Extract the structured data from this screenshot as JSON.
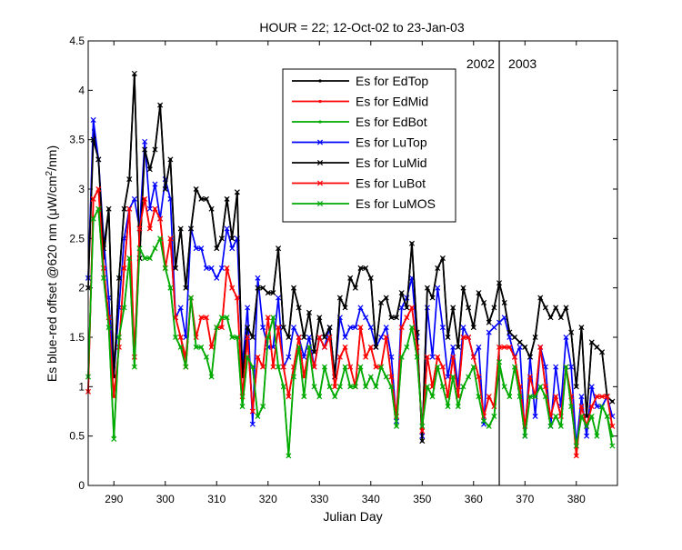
{
  "chart_data": {
    "type": "line",
    "title": "HOUR = 22; 12-Oct-02 to 23-Jan-03",
    "xlabel": "Julian Day",
    "ylabel_parts": [
      "Es blue-red offset @620 nm (",
      "μ",
      "W/cm",
      "2",
      "/nm)"
    ],
    "xlim": [
      285,
      388
    ],
    "ylim": [
      0,
      4.5
    ],
    "xticks": [
      290,
      300,
      310,
      320,
      330,
      340,
      350,
      360,
      370,
      380
    ],
    "yticks": [
      0,
      0.5,
      1,
      1.5,
      2,
      2.5,
      3,
      3.5,
      4,
      4.5
    ],
    "ytick_labels": [
      "0",
      "0.5",
      "1",
      "1.5",
      "2",
      "2.5",
      "3",
      "3.5",
      "4",
      "4.5"
    ],
    "grid": false,
    "legend_position": "top-center",
    "annotations": {
      "year_divider_x": 365,
      "left_year": "2002",
      "right_year": "2003"
    },
    "x": [
      285,
      286,
      287,
      288,
      289,
      290,
      291,
      292,
      293,
      294,
      295,
      296,
      297,
      298,
      299,
      300,
      301,
      302,
      303,
      304,
      305,
      306,
      307,
      308,
      309,
      310,
      311,
      312,
      313,
      314,
      315,
      316,
      317,
      318,
      319,
      320,
      321,
      322,
      323,
      324,
      325,
      326,
      327,
      328,
      329,
      330,
      331,
      332,
      333,
      334,
      335,
      336,
      337,
      338,
      339,
      340,
      341,
      342,
      343,
      344,
      345,
      346,
      347,
      348,
      349,
      350,
      351,
      352,
      353,
      354,
      355,
      356,
      357,
      358,
      359,
      360,
      361,
      362,
      363,
      364,
      365,
      366,
      367,
      368,
      369,
      370,
      371,
      372,
      373,
      374,
      375,
      376,
      377,
      378,
      379,
      380,
      381,
      382,
      383,
      384,
      385,
      386,
      387
    ],
    "series": [
      {
        "name": "Es for EdTop",
        "color": "#000000",
        "marker": "dot",
        "values": [
          2.1,
          3.6,
          3.3,
          2.3,
          2.8,
          1.1,
          2.1,
          2.8,
          3.1,
          4.15,
          2.3,
          3.4,
          3.2,
          3.4,
          3.85,
          3.0,
          3.3,
          2.2,
          2.6,
          2.0,
          2.6,
          3.0,
          2.9,
          2.9,
          2.8,
          2.4,
          2.5,
          2.9,
          2.5,
          2.95,
          1.1,
          1.6,
          1.5,
          2.0,
          2.0,
          1.95,
          1.95,
          2.4,
          1.6,
          1.5,
          2.0,
          1.8,
          1.5,
          1.75,
          1.35,
          1.7,
          1.5,
          1.6,
          1.1,
          1.9,
          1.8,
          2.1,
          2.0,
          2.2,
          2.2,
          2.1,
          1.4,
          1.85,
          1.9,
          1.7,
          1.7,
          1.95,
          1.8,
          2.45,
          1.55,
          0.45,
          2.0,
          1.9,
          2.2,
          2.3,
          1.5,
          1.8,
          1.4,
          2.0,
          1.8,
          1.6,
          1.95,
          1.85,
          1.65,
          1.8,
          2.05,
          1.85,
          1.55,
          1.5,
          1.45,
          1.4,
          1.3,
          1.5,
          1.9,
          1.8,
          1.7,
          1.8,
          1.7,
          1.8,
          1.55,
          1.0,
          1.6,
          0.7,
          1.45,
          1.4,
          1.35,
          0.9,
          0.85
        ]
      },
      {
        "name": "Es for EdMid",
        "color": "#ff0000",
        "marker": "dot",
        "values": [
          0.95,
          2.9,
          3.0,
          2.2,
          1.7,
          0.9,
          1.4,
          2.2,
          2.8,
          1.3,
          2.6,
          2.9,
          2.6,
          2.8,
          2.7,
          2.2,
          2.5,
          1.7,
          1.5,
          1.3,
          1.9,
          1.5,
          1.7,
          1.7,
          1.4,
          1.6,
          1.6,
          2.2,
          2.0,
          1.9,
          0.9,
          1.5,
          0.75,
          1.3,
          1.2,
          1.7,
          1.2,
          1.6,
          1.2,
          0.9,
          1.2,
          1.5,
          1.1,
          1.4,
          1.2,
          1.5,
          1.4,
          1.5,
          1.0,
          1.3,
          1.4,
          1.2,
          1.0,
          1.6,
          1.3,
          1.4,
          1.2,
          1.2,
          1.5,
          1.1,
          0.7,
          1.6,
          1.7,
          1.8,
          1.4,
          0.55,
          1.3,
          1.0,
          1.3,
          1.2,
          0.9,
          1.3,
          0.9,
          1.5,
          1.5,
          1.3,
          1.1,
          0.7,
          0.9,
          0.8,
          1.4,
          1.4,
          1.4,
          1.3,
          1.0,
          0.6,
          1.1,
          0.9,
          1.4,
          1.0,
          0.7,
          0.9,
          0.7,
          1.2,
          0.9,
          0.3,
          0.8,
          0.6,
          0.8,
          0.9,
          0.9,
          0.9,
          0.6
        ]
      },
      {
        "name": "Es for EdBot",
        "color": "#00aa00",
        "marker": "dot",
        "values": [
          1.1,
          2.7,
          2.8,
          2.1,
          1.6,
          0.5,
          1.5,
          1.8,
          2.3,
          1.2,
          2.4,
          2.3,
          2.3,
          2.4,
          2.5,
          2.2,
          2.0,
          1.5,
          1.4,
          1.2,
          1.9,
          1.4,
          1.4,
          1.3,
          1.1,
          1.6,
          1.7,
          1.7,
          1.5,
          1.5,
          0.8,
          1.3,
          1.2,
          0.7,
          0.8,
          1.5,
          1.7,
          1.2,
          1.0,
          0.3,
          1.1,
          1.4,
          0.9,
          1.4,
          1.0,
          0.9,
          1.2,
          1.0,
          0.9,
          1.0,
          1.2,
          1.0,
          1.0,
          1.2,
          1.0,
          1.1,
          1.0,
          1.2,
          1.1,
          1.0,
          0.6,
          1.3,
          1.4,
          1.6,
          1.3,
          0.6,
          1.0,
          0.9,
          1.2,
          1.0,
          0.8,
          1.1,
          0.8,
          1.0,
          1.1,
          1.2,
          0.9,
          0.65,
          0.6,
          0.7,
          1.2,
          1.0,
          0.9,
          1.2,
          0.9,
          0.5,
          0.9,
          0.9,
          1.0,
          0.9,
          0.6,
          0.7,
          0.6,
          1.2,
          0.8,
          0.4,
          0.7,
          0.6,
          0.7,
          0.5,
          0.8,
          0.7,
          0.5
        ]
      },
      {
        "name": "Es for LuTop",
        "color": "#0000ff",
        "marker": "x",
        "values": [
          2.1,
          3.7,
          3.3,
          2.5,
          1.9,
          1.1,
          1.8,
          2.5,
          2.8,
          2.9,
          2.6,
          3.48,
          2.8,
          3.05,
          2.7,
          3.1,
          2.9,
          1.7,
          1.8,
          1.5,
          2.6,
          2.4,
          2.4,
          2.2,
          2.2,
          2.1,
          2.2,
          2.6,
          2.4,
          2.5,
          1.2,
          1.8,
          0.62,
          2.1,
          1.6,
          1.4,
          1.4,
          1.9,
          1.2,
          1.3,
          1.6,
          1.5,
          1.3,
          1.5,
          1.2,
          1.5,
          1.4,
          1.6,
          1.1,
          1.7,
          1.5,
          1.6,
          1.6,
          1.8,
          1.7,
          1.6,
          1.4,
          1.5,
          1.6,
          1.3,
          0.65,
          1.8,
          1.9,
          2.1,
          1.5,
          0.5,
          1.8,
          1.3,
          2.0,
          1.6,
          1.1,
          1.4,
          1.0,
          1.6,
          1.5,
          1.3,
          1.4,
          0.62,
          1.55,
          1.6,
          1.65,
          1.7,
          1.5,
          1.3,
          1.4,
          0.5,
          1.3,
          0.7,
          1.4,
          1.2,
          0.6,
          1.2,
          0.8,
          1.5,
          1.2,
          0.4,
          0.9,
          0.5,
          1.0,
          0.8,
          0.8,
          0.9,
          0.7
        ]
      },
      {
        "name": "Es for LuMid",
        "color": "#000000",
        "marker": "x",
        "values": [
          2.0,
          3.5,
          3.3,
          2.4,
          2.8,
          1.1,
          2.1,
          2.8,
          3.1,
          4.17,
          2.3,
          3.4,
          3.2,
          3.4,
          3.85,
          3.0,
          3.3,
          2.2,
          2.6,
          2.0,
          2.6,
          3.0,
          2.9,
          2.9,
          2.8,
          2.4,
          2.5,
          2.9,
          2.5,
          2.97,
          1.1,
          1.6,
          1.5,
          2.0,
          2.0,
          1.95,
          1.95,
          2.4,
          1.6,
          1.5,
          2.0,
          1.8,
          1.5,
          1.75,
          1.35,
          1.7,
          1.5,
          1.6,
          1.1,
          1.9,
          1.8,
          2.1,
          2.0,
          2.2,
          2.2,
          2.1,
          1.4,
          1.85,
          1.9,
          1.7,
          1.7,
          1.95,
          1.8,
          2.45,
          1.55,
          0.45,
          2.0,
          1.9,
          2.2,
          2.3,
          1.5,
          1.8,
          1.4,
          2.0,
          1.8,
          1.6,
          1.95,
          1.85,
          1.65,
          1.8,
          2.05,
          1.85,
          1.55,
          1.5,
          1.45,
          1.4,
          1.3,
          1.5,
          1.9,
          1.8,
          1.7,
          1.8,
          1.7,
          1.8,
          1.55,
          1.0,
          1.6,
          0.7,
          1.45,
          1.4,
          1.35,
          0.9,
          0.85
        ]
      },
      {
        "name": "Es for LuBot",
        "color": "#ff0000",
        "marker": "x",
        "values": [
          0.95,
          2.9,
          3.0,
          2.2,
          1.7,
          0.9,
          1.4,
          2.2,
          2.8,
          1.3,
          2.6,
          2.9,
          2.6,
          2.8,
          2.7,
          2.2,
          2.5,
          1.7,
          1.5,
          1.2,
          1.9,
          1.5,
          1.7,
          1.7,
          1.4,
          1.6,
          1.6,
          2.2,
          2.0,
          1.9,
          0.9,
          1.5,
          0.75,
          1.3,
          1.2,
          1.7,
          1.2,
          1.6,
          1.2,
          0.9,
          1.2,
          1.5,
          1.1,
          1.4,
          1.2,
          1.5,
          1.4,
          1.5,
          1.0,
          1.3,
          1.4,
          1.2,
          1.0,
          1.6,
          1.3,
          1.4,
          1.2,
          1.2,
          1.5,
          1.1,
          0.7,
          1.6,
          1.7,
          1.8,
          1.4,
          0.55,
          1.3,
          1.0,
          1.3,
          1.2,
          0.9,
          1.3,
          0.9,
          1.5,
          1.5,
          1.3,
          1.1,
          0.7,
          0.9,
          0.8,
          1.4,
          1.4,
          1.4,
          1.3,
          1.0,
          0.6,
          1.1,
          0.9,
          1.4,
          1.0,
          0.7,
          0.9,
          0.7,
          1.2,
          0.9,
          0.3,
          0.8,
          0.6,
          0.8,
          0.9,
          0.9,
          0.9,
          0.6
        ]
      },
      {
        "name": "Es for LuMOS",
        "color": "#00aa00",
        "marker": "x",
        "values": [
          1.1,
          2.7,
          2.8,
          2.1,
          1.6,
          0.47,
          1.5,
          1.8,
          2.3,
          1.2,
          2.4,
          2.3,
          2.3,
          2.4,
          2.5,
          2.2,
          2.0,
          1.5,
          1.4,
          1.2,
          1.9,
          1.4,
          1.4,
          1.3,
          1.1,
          1.6,
          1.7,
          1.7,
          1.5,
          1.5,
          0.8,
          1.3,
          1.2,
          0.7,
          0.8,
          1.5,
          1.7,
          1.2,
          1.0,
          0.3,
          1.1,
          1.4,
          0.9,
          1.4,
          1.0,
          0.9,
          1.2,
          1.0,
          0.9,
          1.0,
          1.2,
          1.0,
          1.0,
          1.2,
          1.0,
          1.1,
          1.0,
          1.2,
          1.1,
          1.0,
          0.6,
          1.3,
          1.4,
          1.6,
          1.3,
          0.6,
          1.0,
          0.9,
          1.2,
          1.0,
          0.8,
          1.1,
          0.8,
          1.0,
          1.1,
          1.2,
          0.9,
          0.65,
          0.6,
          0.7,
          1.25,
          1.0,
          0.9,
          1.2,
          0.9,
          0.5,
          0.9,
          0.9,
          1.0,
          0.9,
          0.6,
          0.7,
          0.6,
          1.2,
          0.8,
          0.4,
          0.7,
          0.6,
          0.7,
          0.5,
          0.8,
          0.7,
          0.4
        ]
      }
    ]
  }
}
